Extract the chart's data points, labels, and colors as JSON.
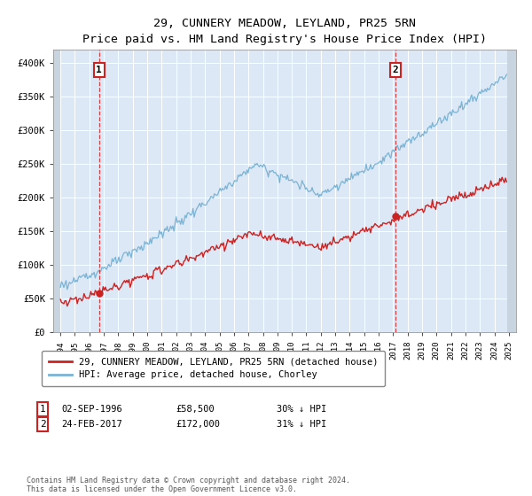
{
  "title": "29, CUNNERY MEADOW, LEYLAND, PR25 5RN",
  "subtitle": "Price paid vs. HM Land Registry's House Price Index (HPI)",
  "ylim": [
    0,
    420000
  ],
  "yticks": [
    0,
    50000,
    100000,
    150000,
    200000,
    250000,
    300000,
    350000,
    400000
  ],
  "ytick_labels": [
    "£0",
    "£50K",
    "£100K",
    "£150K",
    "£200K",
    "£250K",
    "£300K",
    "£350K",
    "£400K"
  ],
  "hpi_color": "#7ab3d4",
  "price_color": "#cc2222",
  "background_color": "#dce8f5",
  "hatch_bg_color": "#c8d4e0",
  "transaction1_x": 1996.67,
  "transaction1_y": 58500,
  "transaction1_label": "1",
  "transaction1_date": "02-SEP-1996",
  "transaction1_price": "£58,500",
  "transaction1_hpi": "30% ↓ HPI",
  "transaction2_x": 2017.15,
  "transaction2_y": 172000,
  "transaction2_label": "2",
  "transaction2_date": "24-FEB-2017",
  "transaction2_price": "£172,000",
  "transaction2_hpi": "31% ↓ HPI",
  "legend_line1": "29, CUNNERY MEADOW, LEYLAND, PR25 5RN (detached house)",
  "legend_line2": "HPI: Average price, detached house, Chorley",
  "footer": "Contains HM Land Registry data © Crown copyright and database right 2024.\nThis data is licensed under the Open Government Licence v3.0.",
  "xmin": 1993.5,
  "xmax": 2025.5,
  "data_xstart": 1994.0,
  "data_xend": 2024.9
}
